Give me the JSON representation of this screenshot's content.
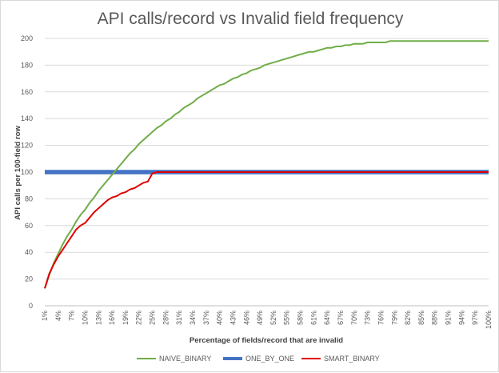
{
  "chart_data": {
    "type": "line",
    "title": "API calls/record vs Invalid field frequency",
    "xlabel": "Percentage of fields/record that are invalid",
    "ylabel": "API calls per 100-field row",
    "ylim": [
      0,
      200
    ],
    "yticks": [
      "0",
      "20",
      "40",
      "60",
      "80",
      "100",
      "120",
      "140",
      "160",
      "180",
      "200"
    ],
    "x": [
      1,
      2,
      3,
      4,
      5,
      6,
      7,
      8,
      9,
      10,
      11,
      12,
      13,
      14,
      15,
      16,
      17,
      18,
      19,
      20,
      21,
      22,
      23,
      24,
      25,
      26,
      27,
      28,
      29,
      30,
      31,
      32,
      33,
      34,
      35,
      36,
      37,
      38,
      39,
      40,
      41,
      42,
      43,
      44,
      45,
      46,
      47,
      48,
      49,
      50,
      51,
      52,
      53,
      54,
      55,
      56,
      57,
      58,
      59,
      60,
      61,
      62,
      63,
      64,
      65,
      66,
      67,
      68,
      69,
      70,
      71,
      72,
      73,
      74,
      75,
      76,
      77,
      78,
      79,
      80,
      81,
      82,
      83,
      84,
      85,
      86,
      87,
      88,
      89,
      90,
      91,
      92,
      93,
      94,
      95,
      96,
      97,
      98,
      99,
      100
    ],
    "xtick_labels": [
      "1%",
      "4%",
      "7%",
      "10%",
      "13%",
      "16%",
      "19%",
      "22%",
      "25%",
      "28%",
      "31%",
      "34%",
      "37%",
      "40%",
      "43%",
      "46%",
      "49%",
      "52%",
      "55%",
      "58%",
      "61%",
      "64%",
      "67%",
      "70%",
      "73%",
      "76%",
      "79%",
      "82%",
      "85%",
      "88%",
      "91%",
      "94%",
      "97%",
      "100%"
    ],
    "grid": true,
    "legend_position": "bottom",
    "series": [
      {
        "name": "NAIVE_BINARY",
        "color": "#70ad47",
        "values": [
          13,
          23,
          32,
          39,
          46,
          52,
          57,
          63,
          68,
          72,
          77,
          81,
          86,
          90,
          94,
          98,
          102,
          106,
          110,
          114,
          117,
          121,
          124,
          127,
          130,
          133,
          135,
          138,
          140,
          143,
          145,
          148,
          150,
          152,
          155,
          157,
          159,
          161,
          163,
          165,
          166,
          168,
          170,
          171,
          173,
          174,
          176,
          177,
          178,
          180,
          181,
          182,
          183,
          184,
          185,
          186,
          187,
          188,
          189,
          190,
          190,
          191,
          192,
          193,
          193,
          194,
          194,
          195,
          195,
          196,
          196,
          196,
          197,
          197,
          197,
          197,
          197,
          198,
          198,
          198,
          198,
          198,
          198,
          198,
          198,
          198,
          198,
          198,
          198,
          198,
          198,
          198,
          198,
          198,
          198,
          198,
          198,
          198,
          198,
          198
        ]
      },
      {
        "name": "ONE_BY_ONE",
        "color": "#4472c4",
        "values": [
          100,
          100,
          100,
          100,
          100,
          100,
          100,
          100,
          100,
          100,
          100,
          100,
          100,
          100,
          100,
          100,
          100,
          100,
          100,
          100,
          100,
          100,
          100,
          100,
          100,
          100,
          100,
          100,
          100,
          100,
          100,
          100,
          100,
          100,
          100,
          100,
          100,
          100,
          100,
          100,
          100,
          100,
          100,
          100,
          100,
          100,
          100,
          100,
          100,
          100,
          100,
          100,
          100,
          100,
          100,
          100,
          100,
          100,
          100,
          100,
          100,
          100,
          100,
          100,
          100,
          100,
          100,
          100,
          100,
          100,
          100,
          100,
          100,
          100,
          100,
          100,
          100,
          100,
          100,
          100,
          100,
          100,
          100,
          100,
          100,
          100,
          100,
          100,
          100,
          100,
          100,
          100,
          100,
          100,
          100,
          100,
          100,
          100,
          100,
          100
        ]
      },
      {
        "name": "SMART_BINARY",
        "color": "#e00000",
        "values": [
          13,
          24,
          31,
          37,
          42,
          47,
          52,
          57,
          60,
          62,
          66,
          70,
          73,
          76,
          79,
          81,
          82,
          84,
          85,
          87,
          88,
          90,
          92,
          93,
          99,
          100,
          100,
          100,
          100,
          100,
          100,
          100,
          100,
          100,
          100,
          100,
          100,
          100,
          100,
          100,
          100,
          100,
          100,
          100,
          100,
          100,
          100,
          100,
          100,
          100,
          100,
          100,
          100,
          100,
          100,
          100,
          100,
          100,
          100,
          100,
          100,
          100,
          100,
          100,
          100,
          100,
          100,
          100,
          100,
          100,
          100,
          100,
          100,
          100,
          100,
          100,
          100,
          100,
          100,
          100,
          100,
          100,
          100,
          100,
          100,
          100,
          100,
          100,
          100,
          100,
          100,
          100,
          100,
          100,
          100,
          100,
          100,
          100,
          100,
          100
        ]
      }
    ]
  }
}
